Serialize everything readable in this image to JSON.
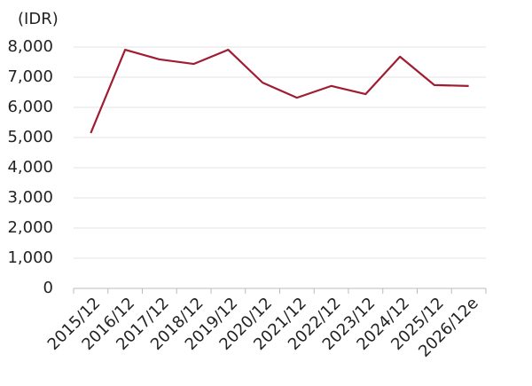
{
  "chart_data": {
    "type": "line",
    "y_label": "(IDR)",
    "categories": [
      "2015/12",
      "2016/12",
      "2017/12",
      "2018/12",
      "2019/12",
      "2020/12",
      "2021/12",
      "2022/12",
      "2023/12",
      "2024/12",
      "2025/12",
      "2026/12e"
    ],
    "series": [
      {
        "name": "IDR",
        "color": "#a01c30",
        "values": [
          5150,
          7910,
          7590,
          7440,
          7910,
          6820,
          6320,
          6710,
          6440,
          7680,
          6740,
          6710
        ]
      }
    ],
    "ylim": [
      0,
      8000
    ],
    "yticks": [
      0,
      {
        "value": 1000,
        "label": "1,000"
      },
      {
        "value": 2000,
        "label": "2,000"
      },
      {
        "value": 3000,
        "label": "3,000"
      },
      {
        "value": 4000,
        "label": "4,000"
      },
      {
        "value": 5000,
        "label": "5,000"
      },
      {
        "value": 6000,
        "label": "6,000"
      },
      {
        "value": 7000,
        "label": "7,000"
      },
      {
        "value": 8000,
        "label": "8,000"
      }
    ],
    "grid": true
  }
}
